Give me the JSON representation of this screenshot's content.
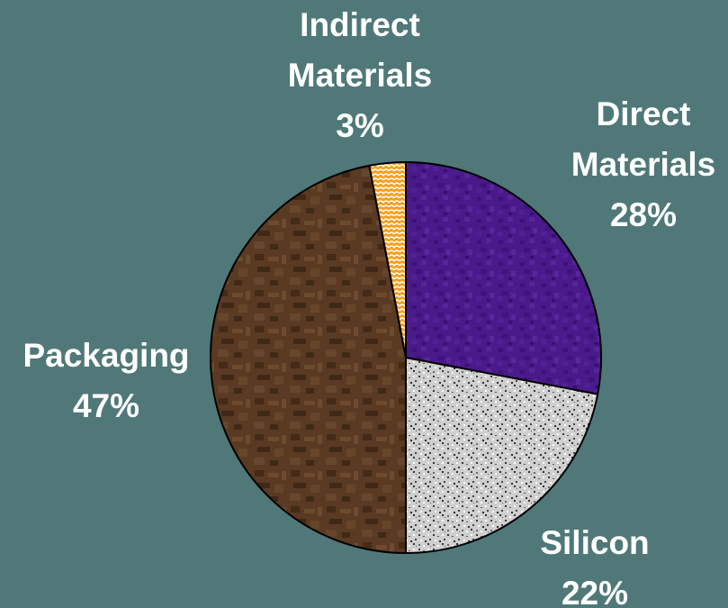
{
  "chart_data": {
    "type": "pie",
    "title": "",
    "slices": [
      {
        "label_lines": [
          "Direct",
          "Materials"
        ],
        "percent_label": "28%",
        "value": 28,
        "pattern": "direct-materials-texture"
      },
      {
        "label_lines": [
          "Silicon"
        ],
        "percent_label": "22%",
        "value": 22,
        "pattern": "silicon-texture"
      },
      {
        "label_lines": [
          "Packaging"
        ],
        "percent_label": "47%",
        "value": 47,
        "pattern": "packaging-texture"
      },
      {
        "label_lines": [
          "Indirect",
          "Materials"
        ],
        "percent_label": "3%",
        "value": 3,
        "pattern": "indirect-materials-texture"
      }
    ],
    "colors": {
      "background": "#507878",
      "direct_materials": "#4a1a8a",
      "silicon": "#c8c8c8",
      "packaging": "#5a3a22",
      "indirect_materials": "#f5a020",
      "outline": "#000000",
      "label_text": "#ffffff"
    },
    "legend": "none"
  }
}
